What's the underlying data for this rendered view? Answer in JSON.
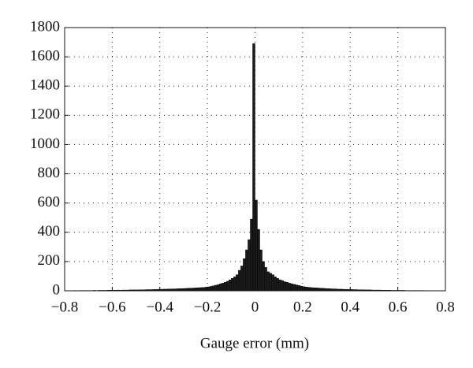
{
  "chart_data": {
    "type": "histogram",
    "xlabel": "Gauge error (mm)",
    "bins": [
      -0.8,
      -0.79,
      -0.78,
      -0.77,
      -0.76,
      -0.75,
      -0.74,
      -0.73,
      -0.72,
      -0.71,
      -0.7,
      -0.69,
      -0.68,
      -0.67,
      -0.66,
      -0.65,
      -0.64,
      -0.63,
      -0.62,
      -0.61,
      -0.6,
      -0.59,
      -0.58,
      -0.57,
      -0.56,
      -0.55,
      -0.54,
      -0.53,
      -0.52,
      -0.51,
      -0.5,
      -0.49,
      -0.48,
      -0.47,
      -0.46,
      -0.45,
      -0.44,
      -0.43,
      -0.42,
      -0.41,
      -0.4,
      -0.39,
      -0.38,
      -0.37,
      -0.36,
      -0.35,
      -0.34,
      -0.33,
      -0.32,
      -0.31,
      -0.3,
      -0.29,
      -0.28,
      -0.27,
      -0.26,
      -0.25,
      -0.24,
      -0.23,
      -0.22,
      -0.21,
      -0.2,
      -0.19,
      -0.18,
      -0.17,
      -0.16,
      -0.15,
      -0.14,
      -0.13,
      -0.12,
      -0.11,
      -0.1,
      -0.09,
      -0.08,
      -0.07,
      -0.06,
      -0.05,
      -0.04,
      -0.03,
      -0.02,
      -0.01,
      0,
      0.01,
      0.02,
      0.03,
      0.04,
      0.05,
      0.06,
      0.07,
      0.08,
      0.09,
      0.1,
      0.11,
      0.12,
      0.13,
      0.14,
      0.15,
      0.16,
      0.17,
      0.18,
      0.19,
      0.2,
      0.21,
      0.22,
      0.23,
      0.24,
      0.25,
      0.26,
      0.27,
      0.28,
      0.29,
      0.3,
      0.31,
      0.32,
      0.33,
      0.34,
      0.35,
      0.36,
      0.37,
      0.38,
      0.39,
      0.4,
      0.41,
      0.42,
      0.43,
      0.44,
      0.45,
      0.46,
      0.47,
      0.48,
      0.49,
      0.5,
      0.51,
      0.52,
      0.53,
      0.54,
      0.55,
      0.56,
      0.57,
      0.58,
      0.59,
      0.6,
      0.61,
      0.62,
      0.63,
      0.64,
      0.65,
      0.66,
      0.67,
      0.68,
      0.69,
      0.7,
      0.71,
      0.72,
      0.73,
      0.74,
      0.75,
      0.76,
      0.77,
      0.78,
      0.79,
      0.8
    ],
    "values": [
      1,
      1,
      1,
      1,
      2,
      1,
      2,
      2,
      2,
      2,
      2,
      2,
      3,
      2,
      3,
      3,
      3,
      3,
      4,
      4,
      4,
      4,
      5,
      4,
      5,
      5,
      5,
      6,
      6,
      6,
      6,
      7,
      7,
      7,
      8,
      8,
      8,
      9,
      9,
      10,
      10,
      11,
      11,
      12,
      12,
      13,
      13,
      14,
      15,
      15,
      16,
      17,
      18,
      18,
      19,
      20,
      21,
      22,
      23,
      25,
      27,
      30,
      34,
      38,
      42,
      48,
      52,
      58,
      65,
      75,
      85,
      95,
      110,
      140,
      170,
      220,
      280,
      350,
      490,
      1690,
      620,
      420,
      280,
      200,
      160,
      130,
      120,
      110,
      95,
      85,
      75,
      70,
      62,
      58,
      52,
      48,
      44,
      40,
      36,
      32,
      28,
      26,
      24,
      22,
      21,
      20,
      19,
      18,
      17,
      16,
      15,
      14,
      13,
      13,
      12,
      11,
      11,
      10,
      10,
      9,
      9,
      8,
      8,
      7,
      7,
      7,
      6,
      6,
      6,
      5,
      5,
      5,
      5,
      4,
      4,
      4,
      4,
      3,
      3,
      3,
      3,
      3,
      3,
      2,
      2,
      2,
      2,
      2,
      2,
      2,
      2,
      1,
      1,
      1,
      1,
      1,
      1,
      1,
      1,
      1
    ],
    "color": "#1a1a1a",
    "xlim": [
      -0.8,
      0.8
    ],
    "xticks": [
      {
        "value": -0.8,
        "label": "−0.8"
      },
      {
        "value": -0.6,
        "label": "−0.6"
      },
      {
        "value": -0.4,
        "label": "−0.4"
      },
      {
        "value": -0.2,
        "label": "−0.2"
      },
      0,
      0.2,
      0.4,
      0.6,
      0.8
    ],
    "ylim": [
      0,
      1800
    ],
    "yticks": [
      0,
      200,
      400,
      600,
      800,
      1000,
      1200,
      1400,
      1600,
      1800
    ],
    "grid": true
  }
}
